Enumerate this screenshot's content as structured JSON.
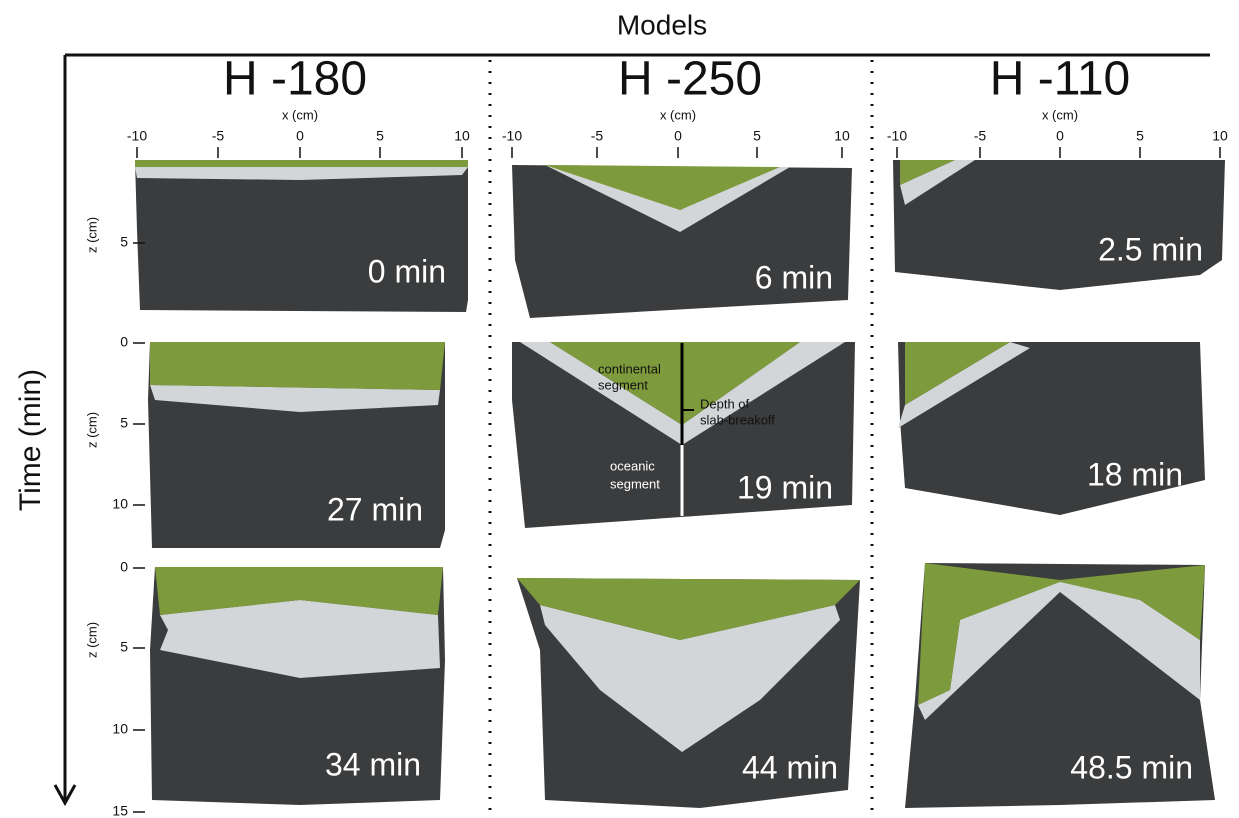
{
  "header": {
    "title": "Models"
  },
  "time_axis": {
    "label": "Time (min)"
  },
  "columns": [
    {
      "title": "H -180",
      "x_label": "x (cm)",
      "x_ticks": [
        -10,
        -5,
        0,
        5,
        10
      ],
      "times": [
        "0 min",
        "27 min",
        "34 min"
      ]
    },
    {
      "title": "H -250",
      "x_label": "x (cm)",
      "x_ticks": [
        -10,
        -5,
        0,
        5,
        10
      ],
      "times": [
        "6 min",
        "19 min",
        "44 min"
      ]
    },
    {
      "title": "H -110",
      "x_label": "x (cm)",
      "x_ticks": [
        -10,
        -5,
        0,
        5,
        10
      ],
      "times": [
        "2.5 min",
        "18 min",
        "48.5 min"
      ]
    }
  ],
  "rows": [
    {
      "z_label": "z (cm)",
      "z_ticks": [
        5
      ]
    },
    {
      "z_label": "z (cm)",
      "z_ticks": [
        0,
        5,
        10
      ]
    },
    {
      "z_label": "z (cm)",
      "z_ticks": [
        0,
        5,
        10,
        15
      ]
    }
  ],
  "annotations": {
    "continental": [
      "continental",
      "segment"
    ],
    "breakoff": [
      "Depth of",
      "slab-breakoff"
    ],
    "oceanic": [
      "oceanic",
      "segment"
    ]
  }
}
